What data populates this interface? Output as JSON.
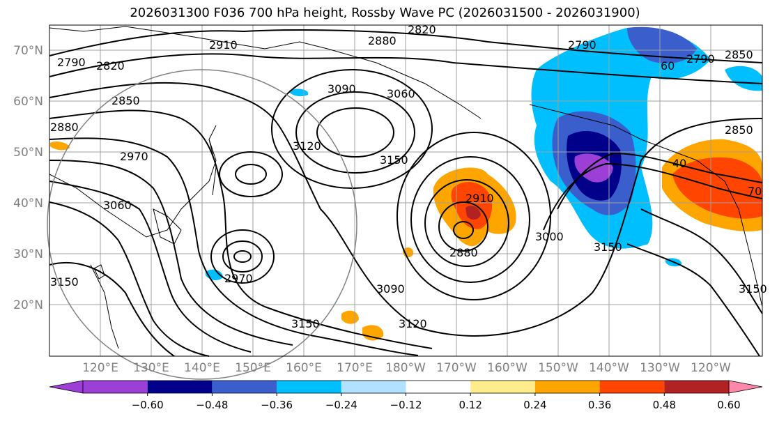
{
  "title": "2026031300 F036 700 hPa height, Rossby Wave PC (2026031500 - 2026031900)",
  "lat_labels": [
    "70°N",
    "60°N",
    "50°N",
    "40°N",
    "30°N",
    "20°N"
  ],
  "lon_labels": [
    "120°E",
    "130°E",
    "140°E",
    "150°E",
    "160°E",
    "170°E",
    "180°W",
    "170°W",
    "160°W",
    "150°W",
    "140°W",
    "130°W",
    "120°W"
  ],
  "contour_labels": [
    "2790",
    "2820",
    "2850",
    "2880",
    "2910",
    "2970",
    "3060",
    "3150",
    "3090",
    "3060",
    "3120",
    "3150",
    "2820",
    "2880",
    "2790",
    "2850",
    "2910",
    "2880",
    "3000",
    "3150",
    "2970",
    "3090",
    "3120",
    "3150",
    "3150",
    "2790",
    "60",
    "2850",
    "40",
    "70"
  ],
  "colorbar": {
    "ticks": [
      "−0.60",
      "−0.48",
      "−0.36",
      "−0.24",
      "−0.12",
      "0.12",
      "0.24",
      "0.36",
      "0.48",
      "0.60"
    ],
    "colors": [
      "#9b3fd6",
      "#00008b",
      "#3a5fcd",
      "#00bfff",
      "#b0e2ff",
      "#ffffff",
      "#ffec8b",
      "#ffa500",
      "#ff4500",
      "#b22222",
      "#ff88aa",
      "#9b3fd6"
    ]
  }
}
